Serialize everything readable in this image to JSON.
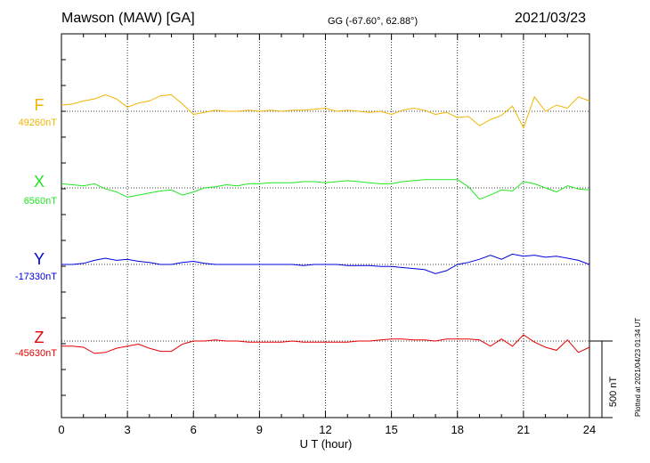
{
  "header": {
    "station": "Mawson (MAW)  [GA]",
    "coords": "GG (-67.60°,  62.88°)",
    "date": "2021/03/23"
  },
  "footer": {
    "plotted": "Plotted at 2021/04/23 01:34 UT"
  },
  "colors": {
    "F": "#f0b400",
    "X": "#22e622",
    "Y": "#0000dd",
    "Z": "#e60000"
  },
  "chart_data": {
    "type": "line",
    "xlabel": "U T (hour)",
    "xlim": [
      0,
      24
    ],
    "xticks": [
      0,
      3,
      6,
      9,
      12,
      15,
      18,
      21,
      24
    ],
    "grid": true,
    "scale_bar": {
      "label": "500 nT",
      "value": 500
    },
    "series": [
      {
        "name": "F",
        "baseline_label": "49260nT",
        "baseline": 49260,
        "x": [
          0,
          0.5,
          1,
          1.5,
          2,
          2.5,
          3,
          3.5,
          4,
          4.5,
          5,
          5.5,
          6,
          6.5,
          7,
          7.5,
          8,
          8.5,
          9,
          9.5,
          10,
          10.5,
          11,
          11.5,
          12,
          12.5,
          13,
          13.5,
          14,
          14.5,
          15,
          15.5,
          16,
          16.5,
          17,
          17.5,
          18,
          18.5,
          19,
          19.5,
          20,
          20.5,
          21,
          21.5,
          22,
          22.5,
          23,
          23.5,
          24
        ],
        "y": [
          49320,
          49330,
          49360,
          49380,
          49420,
          49380,
          49300,
          49340,
          49360,
          49410,
          49420,
          49330,
          49230,
          49250,
          49270,
          49260,
          49260,
          49270,
          49260,
          49270,
          49260,
          49270,
          49270,
          49280,
          49290,
          49260,
          49270,
          49260,
          49250,
          49260,
          49230,
          49270,
          49290,
          49270,
          49230,
          49250,
          49200,
          49210,
          49120,
          49180,
          49220,
          49310,
          49100,
          49400,
          49260,
          49320,
          49290,
          49400,
          49360
        ]
      },
      {
        "name": "X",
        "baseline_label": "6560nT",
        "baseline": 6560,
        "x": [
          0,
          0.5,
          1,
          1.5,
          2,
          2.5,
          3,
          3.5,
          4,
          4.5,
          5,
          5.5,
          6,
          6.5,
          7,
          7.5,
          8,
          8.5,
          9,
          9.5,
          10,
          10.5,
          11,
          11.5,
          12,
          12.5,
          13,
          13.5,
          14,
          14.5,
          15,
          15.5,
          16,
          16.5,
          17,
          17.5,
          18,
          18.5,
          19,
          19.5,
          20,
          20.5,
          21,
          21.5,
          22,
          22.5,
          23,
          23.5,
          24
        ],
        "y": [
          6600,
          6590,
          6580,
          6600,
          6550,
          6520,
          6470,
          6490,
          6510,
          6530,
          6540,
          6490,
          6520,
          6560,
          6570,
          6590,
          6580,
          6600,
          6600,
          6610,
          6610,
          6610,
          6620,
          6620,
          6610,
          6620,
          6630,
          6620,
          6610,
          6600,
          6600,
          6620,
          6630,
          6640,
          6640,
          6640,
          6640,
          6570,
          6450,
          6490,
          6540,
          6530,
          6620,
          6600,
          6560,
          6520,
          6580,
          6550,
          6540
        ]
      },
      {
        "name": "Y",
        "baseline_label": "-17330nT",
        "baseline": -17330,
        "x": [
          0,
          0.5,
          1,
          1.5,
          2,
          2.5,
          3,
          3.5,
          4,
          4.5,
          5,
          5.5,
          6,
          6.5,
          7,
          7.5,
          8,
          8.5,
          9,
          9.5,
          10,
          10.5,
          11,
          11.5,
          12,
          12.5,
          13,
          13.5,
          14,
          14.5,
          15,
          15.5,
          16,
          16.5,
          17,
          17.5,
          18,
          18.5,
          19,
          19.5,
          20,
          20.5,
          21,
          21.5,
          22,
          22.5,
          23,
          23.5,
          24
        ],
        "y": [
          -17330,
          -17330,
          -17320,
          -17290,
          -17270,
          -17290,
          -17280,
          -17300,
          -17310,
          -17330,
          -17330,
          -17310,
          -17300,
          -17320,
          -17330,
          -17330,
          -17330,
          -17330,
          -17330,
          -17330,
          -17330,
          -17330,
          -17340,
          -17330,
          -17330,
          -17330,
          -17340,
          -17340,
          -17340,
          -17350,
          -17350,
          -17360,
          -17370,
          -17380,
          -17420,
          -17390,
          -17330,
          -17310,
          -17280,
          -17240,
          -17280,
          -17230,
          -17250,
          -17240,
          -17260,
          -17250,
          -17270,
          -17290,
          -17330
        ]
      },
      {
        "name": "Z",
        "baseline_label": "-45630nT",
        "baseline": -45630,
        "x": [
          0,
          0.5,
          1,
          1.5,
          2,
          2.5,
          3,
          3.5,
          4,
          4.5,
          5,
          5.5,
          6,
          6.5,
          7,
          7.5,
          8,
          8.5,
          9,
          9.5,
          10,
          10.5,
          11,
          11.5,
          12,
          12.5,
          13,
          13.5,
          14,
          14.5,
          15,
          15.5,
          16,
          16.5,
          17,
          17.5,
          18,
          18.5,
          19,
          19.5,
          20,
          20.5,
          21,
          21.5,
          22,
          22.5,
          23,
          23.5,
          24
        ],
        "y": [
          -45680,
          -45680,
          -45690,
          -45750,
          -45740,
          -45700,
          -45680,
          -45660,
          -45700,
          -45730,
          -45730,
          -45660,
          -45630,
          -45630,
          -45620,
          -45630,
          -45630,
          -45640,
          -45640,
          -45640,
          -45640,
          -45630,
          -45640,
          -45640,
          -45640,
          -45640,
          -45640,
          -45630,
          -45630,
          -45620,
          -45610,
          -45610,
          -45620,
          -45620,
          -45630,
          -45610,
          -45610,
          -45610,
          -45620,
          -45680,
          -45610,
          -45680,
          -45570,
          -45640,
          -45690,
          -45720,
          -45620,
          -45740,
          -45690
        ]
      }
    ]
  }
}
